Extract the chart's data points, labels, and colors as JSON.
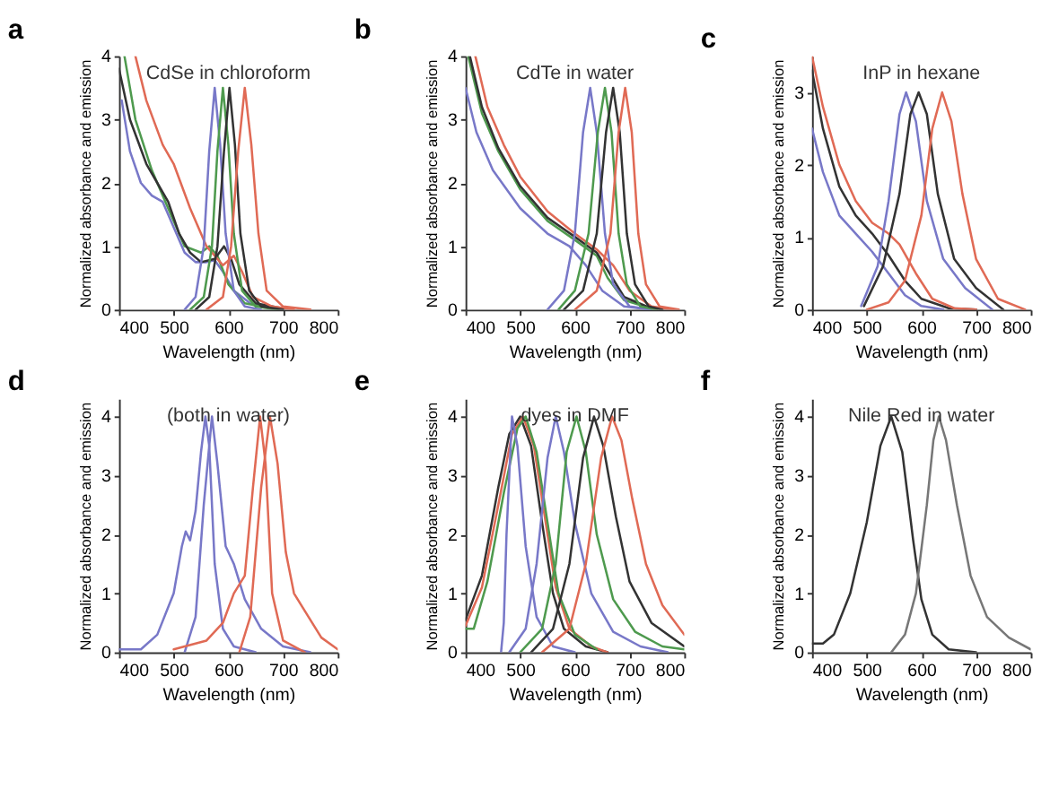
{
  "chart_data": [
    {
      "type": "line",
      "title": "a",
      "annotations": [
        "CdSe in chloroform"
      ],
      "xlabel": "Wavelength (nm)",
      "ylabel": "Normalized absorbance and emission",
      "xlim": [
        400,
        800
      ],
      "xticks": [
        400,
        500,
        600,
        700,
        800
      ],
      "ylim": [
        0,
        4
      ],
      "yticks": [
        0,
        1,
        2,
        3,
        4
      ],
      "grid": false,
      "legend": false,
      "series": [
        {
          "color": "#7878c8",
          "x": [
            405,
            420,
            440,
            460,
            480,
            500,
            520,
            540,
            560,
            575,
            590,
            610,
            640,
            680
          ],
          "values": [
            3.3,
            2.5,
            2.0,
            1.8,
            1.7,
            1.3,
            0.9,
            0.75,
            0.75,
            0.78,
            0.6,
            0.3,
            0.1,
            0.02
          ]
        },
        {
          "color": "#4e9a4e",
          "x": [
            410,
            430,
            460,
            480,
            500,
            520,
            550,
            565,
            580,
            600,
            630,
            680
          ],
          "values": [
            4.0,
            3.0,
            2.2,
            1.8,
            1.4,
            1.0,
            0.9,
            1.0,
            0.85,
            0.4,
            0.1,
            0.02
          ]
        },
        {
          "color": "#333333",
          "x": [
            400,
            420,
            450,
            470,
            490,
            510,
            530,
            550,
            575,
            592,
            605,
            620,
            650,
            700
          ],
          "values": [
            3.8,
            3.0,
            2.3,
            2.0,
            1.7,
            1.2,
            0.9,
            0.75,
            0.8,
            1.0,
            0.8,
            0.4,
            0.1,
            0.02
          ]
        },
        {
          "color": "#e06a55",
          "x": [
            430,
            450,
            480,
            500,
            530,
            560,
            590,
            610,
            625,
            645,
            680,
            720
          ],
          "values": [
            4.0,
            3.3,
            2.6,
            2.3,
            1.6,
            1.0,
            0.7,
            0.85,
            0.6,
            0.2,
            0.05,
            0
          ]
        },
        {
          "color": "#7878c8",
          "x": [
            520,
            540,
            555,
            565,
            575,
            585,
            595,
            610,
            630,
            660
          ],
          "values": [
            0,
            0.2,
            1.0,
            2.5,
            3.5,
            2.6,
            1.2,
            0.3,
            0.05,
            0
          ]
        },
        {
          "color": "#4e9a4e",
          "x": [
            530,
            555,
            570,
            580,
            590,
            600,
            610,
            625,
            650,
            690
          ],
          "values": [
            0,
            0.2,
            1.0,
            2.5,
            3.5,
            2.6,
            1.2,
            0.3,
            0.05,
            0
          ]
        },
        {
          "color": "#333333",
          "x": [
            540,
            565,
            580,
            592,
            602,
            612,
            622,
            638,
            660,
            700
          ],
          "values": [
            0,
            0.2,
            1.0,
            2.5,
            3.5,
            2.6,
            1.2,
            0.3,
            0.05,
            0
          ]
        },
        {
          "color": "#e06a55",
          "x": [
            560,
            590,
            605,
            618,
            630,
            642,
            655,
            670,
            700,
            750
          ],
          "values": [
            0,
            0.2,
            1.0,
            2.5,
            3.5,
            2.6,
            1.2,
            0.3,
            0.05,
            0
          ]
        }
      ]
    },
    {
      "type": "line",
      "title": "b",
      "annotations": [
        "CdTe in water"
      ],
      "xlabel": "Wavelength (nm)",
      "ylabel": "Normalized absorbance and emission",
      "xlim": [
        400,
        800
      ],
      "xticks": [
        400,
        500,
        600,
        700,
        800
      ],
      "ylim": [
        0,
        4
      ],
      "yticks": [
        0,
        1,
        2,
        3,
        4
      ],
      "grid": false,
      "legend": false,
      "series": [
        {
          "color": "#7878c8",
          "x": [
            400,
            420,
            450,
            500,
            550,
            590,
            620,
            650,
            690,
            740
          ],
          "values": [
            3.5,
            2.8,
            2.2,
            1.6,
            1.2,
            1.0,
            0.7,
            0.3,
            0.05,
            0
          ]
        },
        {
          "color": "#4e9a4e",
          "x": [
            405,
            430,
            460,
            500,
            550,
            600,
            640,
            660,
            690,
            740
          ],
          "values": [
            4.0,
            3.1,
            2.5,
            1.9,
            1.4,
            1.1,
            0.85,
            0.5,
            0.15,
            0.02
          ]
        },
        {
          "color": "#333333",
          "x": [
            408,
            430,
            460,
            500,
            550,
            600,
            640,
            665,
            690,
            740
          ],
          "values": [
            4.0,
            3.2,
            2.55,
            1.95,
            1.45,
            1.15,
            0.9,
            0.55,
            0.2,
            0.02
          ]
        },
        {
          "color": "#e06a55",
          "x": [
            418,
            440,
            470,
            500,
            550,
            600,
            640,
            670,
            700,
            740,
            780
          ],
          "values": [
            4.0,
            3.2,
            2.6,
            2.1,
            1.55,
            1.2,
            0.95,
            0.7,
            0.3,
            0.05,
            0
          ]
        },
        {
          "color": "#7878c8",
          "x": [
            550,
            580,
            600,
            615,
            628,
            640,
            655,
            670,
            700,
            740
          ],
          "values": [
            0,
            0.3,
            1.2,
            2.8,
            3.5,
            2.8,
            1.2,
            0.4,
            0.05,
            0
          ]
        },
        {
          "color": "#4e9a4e",
          "x": [
            570,
            600,
            625,
            642,
            655,
            667,
            680,
            695,
            720,
            750
          ],
          "values": [
            0,
            0.3,
            1.2,
            2.8,
            3.5,
            2.8,
            1.2,
            0.4,
            0.05,
            0
          ]
        },
        {
          "color": "#333333",
          "x": [
            580,
            615,
            640,
            657,
            670,
            682,
            695,
            710,
            735,
            760
          ],
          "values": [
            0,
            0.3,
            1.2,
            2.8,
            3.5,
            2.8,
            1.2,
            0.4,
            0.05,
            0
          ]
        },
        {
          "color": "#e06a55",
          "x": [
            600,
            640,
            665,
            680,
            692,
            704,
            716,
            730,
            755,
            790
          ],
          "values": [
            0,
            0.3,
            1.2,
            2.8,
            3.5,
            2.8,
            1.2,
            0.4,
            0.05,
            0
          ]
        }
      ]
    },
    {
      "type": "line",
      "title": "c",
      "annotations": [
        "InP in hexane"
      ],
      "xlabel": "Wavelength (nm)",
      "ylabel": "Normalized absorbance and emission",
      "xlim": [
        400,
        800
      ],
      "xticks": [
        400,
        500,
        600,
        700,
        800
      ],
      "ylim": [
        0,
        3.5
      ],
      "yticks": [
        0,
        1,
        2,
        3
      ],
      "grid": false,
      "legend": false,
      "series": [
        {
          "color": "#7878c8",
          "x": [
            400,
            420,
            450,
            480,
            510,
            540,
            570,
            600,
            640
          ],
          "values": [
            2.5,
            1.9,
            1.3,
            1.05,
            0.8,
            0.5,
            0.2,
            0.05,
            0
          ]
        },
        {
          "color": "#333333",
          "x": [
            400,
            420,
            450,
            480,
            510,
            540,
            570,
            600,
            650,
            700
          ],
          "values": [
            3.3,
            2.5,
            1.7,
            1.3,
            1.05,
            0.75,
            0.4,
            0.15,
            0.02,
            0
          ]
        },
        {
          "color": "#e06a55",
          "x": [
            400,
            420,
            450,
            480,
            510,
            540,
            560,
            590,
            620,
            660,
            700
          ],
          "values": [
            3.5,
            2.8,
            2.0,
            1.5,
            1.2,
            1.05,
            0.9,
            0.5,
            0.15,
            0.02,
            0
          ]
        },
        {
          "color": "#7878c8",
          "x": [
            490,
            520,
            540,
            560,
            572,
            590,
            610,
            640,
            680,
            730
          ],
          "values": [
            0.05,
            0.6,
            1.5,
            2.7,
            3.0,
            2.6,
            1.5,
            0.7,
            0.3,
            0
          ]
        },
        {
          "color": "#333333",
          "x": [
            495,
            530,
            560,
            580,
            595,
            610,
            630,
            660,
            700,
            750
          ],
          "values": [
            0.05,
            0.6,
            1.6,
            2.7,
            3.0,
            2.7,
            1.6,
            0.7,
            0.3,
            0
          ]
        },
        {
          "color": "#e06a55",
          "x": [
            500,
            540,
            570,
            600,
            620,
            638,
            655,
            675,
            700,
            740,
            790
          ],
          "values": [
            0,
            0.1,
            0.4,
            1.3,
            2.5,
            3.0,
            2.6,
            1.6,
            0.7,
            0.15,
            0
          ]
        }
      ]
    },
    {
      "type": "line",
      "title": "d",
      "annotations": [
        "(both in water)"
      ],
      "xlabel": "Wavelength (nm)",
      "ylabel": "Normalized absorbance and emission",
      "xlim": [
        400,
        800
      ],
      "xticks": [
        400,
        500,
        600,
        700,
        800
      ],
      "ylim": [
        0,
        4.3
      ],
      "yticks": [
        0,
        1,
        2,
        3,
        4
      ],
      "grid": false,
      "legend": false,
      "series": [
        {
          "color": "#7878c8",
          "x": [
            400,
            440,
            470,
            500,
            515,
            522,
            530,
            540,
            550,
            558,
            565,
            575,
            590,
            610,
            650
          ],
          "values": [
            0.05,
            0.05,
            0.3,
            1.0,
            1.8,
            2.05,
            1.9,
            2.4,
            3.4,
            4.0,
            3.5,
            1.5,
            0.4,
            0.1,
            0
          ]
        },
        {
          "color": "#7878c8",
          "x": [
            520,
            540,
            555,
            570,
            580,
            595,
            610,
            630,
            660,
            700,
            750
          ],
          "values": [
            0,
            0.6,
            2.5,
            4.0,
            3.2,
            1.8,
            1.5,
            0.9,
            0.4,
            0.1,
            0
          ]
        },
        {
          "color": "#e06a55",
          "x": [
            500,
            560,
            590,
            610,
            630,
            645,
            658,
            668,
            680,
            700,
            740
          ],
          "values": [
            0.05,
            0.2,
            0.5,
            1.0,
            1.3,
            2.8,
            4.0,
            3.2,
            1.0,
            0.2,
            0
          ]
        },
        {
          "color": "#e06a55",
          "x": [
            620,
            640,
            660,
            676,
            690,
            705,
            720,
            740,
            770,
            800
          ],
          "values": [
            0,
            0.6,
            2.8,
            4.0,
            3.2,
            1.7,
            1.0,
            0.7,
            0.25,
            0.05
          ]
        }
      ]
    },
    {
      "type": "line",
      "title": "e",
      "annotations": [
        "dyes in DMF"
      ],
      "xlabel": "Wavelength (nm)",
      "ylabel": "Normalized absorbance and emission",
      "xlim": [
        400,
        800
      ],
      "xticks": [
        400,
        500,
        600,
        700,
        800
      ],
      "ylim": [
        0,
        4.3
      ],
      "yticks": [
        0,
        1,
        2,
        3,
        4
      ],
      "grid": false,
      "legend": false,
      "series": [
        {
          "color": "#333333",
          "x": [
            400,
            430,
            460,
            480,
            500,
            520,
            540,
            560,
            580,
            620,
            660
          ],
          "values": [
            0.55,
            1.3,
            2.8,
            3.7,
            4.0,
            3.5,
            2.2,
            1.0,
            0.4,
            0.1,
            0
          ]
        },
        {
          "color": "#e06a55",
          "x": [
            400,
            430,
            460,
            485,
            505,
            525,
            545,
            565,
            590,
            630,
            660
          ],
          "values": [
            0.45,
            1.1,
            2.5,
            3.7,
            4.0,
            3.5,
            2.3,
            1.1,
            0.4,
            0.1,
            0
          ]
        },
        {
          "color": "#4e9a4e",
          "x": [
            400,
            415,
            440,
            470,
            495,
            510,
            530,
            550,
            570,
            600,
            640
          ],
          "values": [
            0.4,
            0.4,
            1.2,
            2.7,
            3.8,
            4.0,
            3.4,
            2.2,
            1.0,
            0.3,
            0.05
          ]
        },
        {
          "color": "#7878c8",
          "x": [
            465,
            470,
            475,
            485,
            495,
            510,
            530,
            560,
            600
          ],
          "values": [
            0,
            0.5,
            2.0,
            4.0,
            3.5,
            1.8,
            0.6,
            0.1,
            0
          ]
        },
        {
          "color": "#7878c8",
          "x": [
            480,
            510,
            530,
            550,
            565,
            580,
            600,
            630,
            670,
            720,
            770
          ],
          "values": [
            0,
            0.4,
            1.5,
            3.3,
            4.0,
            3.4,
            2.2,
            1.0,
            0.35,
            0.1,
            0
          ]
        },
        {
          "color": "#4e9a4e",
          "x": [
            500,
            540,
            565,
            585,
            603,
            620,
            640,
            670,
            710,
            760,
            800
          ],
          "values": [
            0,
            0.4,
            1.5,
            3.4,
            4.0,
            3.4,
            2.0,
            0.9,
            0.35,
            0.1,
            0.05
          ]
        },
        {
          "color": "#333333",
          "x": [
            520,
            560,
            590,
            615,
            635,
            652,
            675,
            700,
            740,
            800
          ],
          "values": [
            0,
            0.4,
            1.5,
            3.3,
            4.0,
            3.5,
            2.3,
            1.2,
            0.5,
            0.1
          ]
        },
        {
          "color": "#e06a55",
          "x": [
            540,
            590,
            620,
            648,
            668,
            685,
            705,
            730,
            760,
            800
          ],
          "values": [
            0,
            0.4,
            1.5,
            3.3,
            4.0,
            3.6,
            2.6,
            1.5,
            0.8,
            0.3
          ]
        }
      ]
    },
    {
      "type": "line",
      "title": "f",
      "annotations": [
        "Nile Red in water"
      ],
      "xlabel": "Wavelength (nm)",
      "ylabel": "Normalized absorbance and emission",
      "xlim": [
        400,
        800
      ],
      "xticks": [
        400,
        500,
        600,
        700,
        800
      ],
      "ylim": [
        0,
        4.3
      ],
      "yticks": [
        0,
        1,
        2,
        3,
        4
      ],
      "grid": false,
      "legend": false,
      "series": [
        {
          "color": "#333333",
          "x": [
            400,
            420,
            440,
            470,
            500,
            525,
            545,
            565,
            585,
            600,
            620,
            650,
            700
          ],
          "values": [
            0.15,
            0.15,
            0.3,
            1.0,
            2.2,
            3.5,
            4.0,
            3.4,
            1.9,
            0.9,
            0.3,
            0.05,
            0
          ]
        },
        {
          "color": "#777777",
          "x": [
            545,
            570,
            590,
            610,
            622,
            632,
            645,
            665,
            690,
            720,
            760,
            800
          ],
          "values": [
            0,
            0.3,
            1.0,
            2.5,
            3.6,
            4.0,
            3.6,
            2.5,
            1.3,
            0.6,
            0.25,
            0.05
          ]
        }
      ]
    }
  ]
}
